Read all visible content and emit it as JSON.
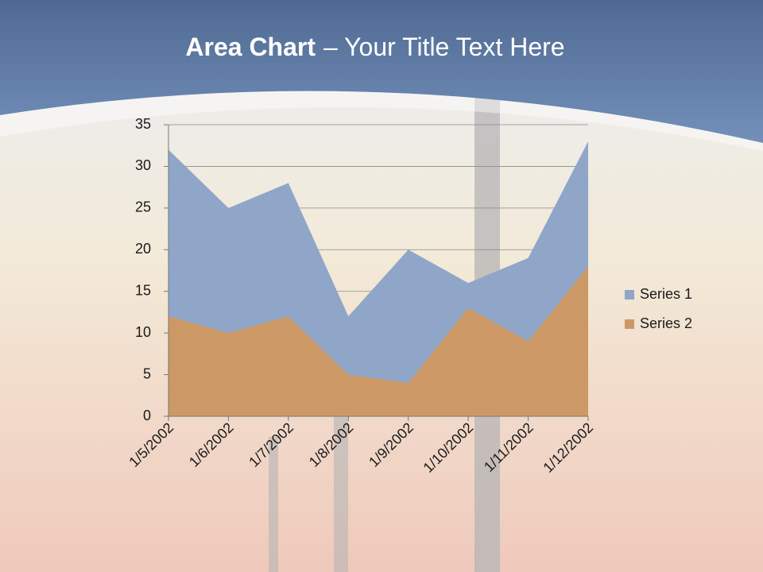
{
  "chart_data": {
    "type": "area",
    "title_emphasis": "Area Chart",
    "title": "– Your Title Text Here",
    "categories": [
      "1/5/2002",
      "1/6/2002",
      "1/7/2002",
      "1/8/2002",
      "1/9/2002",
      "1/10/2002",
      "1/11/2002",
      "1/12/2002"
    ],
    "series": [
      {
        "name": "Series 1",
        "color": "#8fa6c9",
        "values": [
          32,
          25,
          28,
          12,
          20,
          16,
          19,
          33
        ]
      },
      {
        "name": "Series 2",
        "color": "#cc9966",
        "values": [
          12,
          10,
          12,
          5,
          4,
          13,
          9,
          18
        ]
      }
    ],
    "ylim": [
      0,
      35
    ],
    "yticks": [
      0,
      5,
      10,
      15,
      20,
      25,
      30,
      35
    ],
    "grid": true,
    "legend": "right"
  }
}
